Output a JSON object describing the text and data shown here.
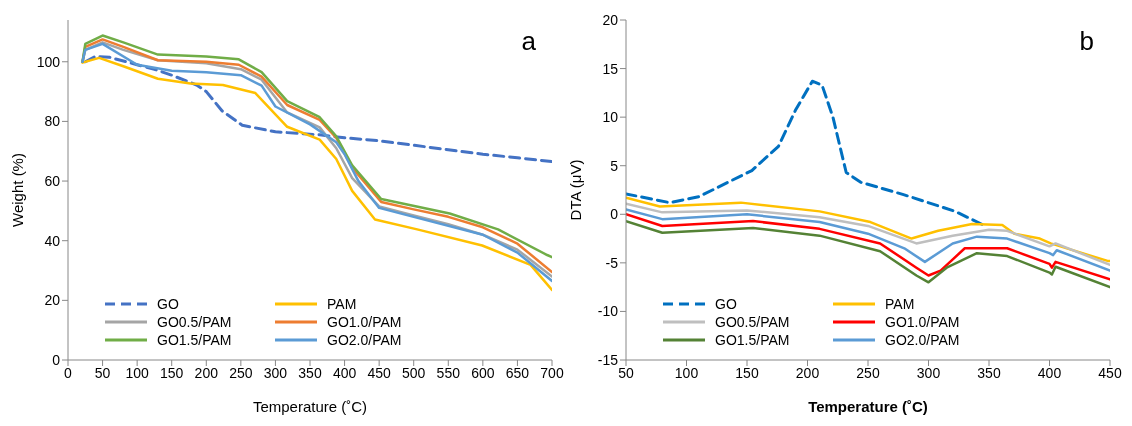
{
  "chart_data": [
    {
      "type": "line",
      "xlabel": "Temperature (˚C)",
      "ylabel": "Weight (%)",
      "xlim": [
        0,
        700
      ],
      "xticks": [
        0,
        50,
        100,
        150,
        200,
        250,
        300,
        350,
        400,
        450,
        500,
        550,
        600,
        650,
        700
      ],
      "ylim": [
        0,
        114
      ],
      "yticks": [
        0,
        20,
        40,
        60,
        80,
        100
      ],
      "grid": false,
      "legend": "bottom",
      "marker": "none",
      "annotations": [
        "a"
      ],
      "series": [
        {
          "name": "GO",
          "color": "#4472c4",
          "line_style": "dashed",
          "x": [
            25,
            40,
            60,
            100,
            125,
            150,
            186,
            200,
            223,
            252,
            300,
            364,
            400,
            450,
            500,
            550,
            600,
            650,
            700
          ],
          "values": [
            100,
            101.8,
            101.5,
            99,
            97.5,
            95.5,
            92.2,
            90,
            83.5,
            78.7,
            76.5,
            75.5,
            74.5,
            73.5,
            72,
            70.5,
            69,
            67.8,
            66.5
          ]
        },
        {
          "name": "PAM",
          "color": "#ffc000",
          "x": [
            21,
            45,
            80,
            130,
            177,
            224,
            271,
            317,
            364,
            388,
            411,
            444,
            505,
            599,
            669,
            700
          ],
          "values": [
            99.7,
            101.3,
            98.5,
            94.3,
            92.7,
            92.2,
            89.5,
            78.2,
            73.9,
            67.4,
            56.7,
            47.1,
            43.8,
            38.4,
            31.9,
            23.5
          ]
        },
        {
          "name": "GO0.5/PAM",
          "color": "#a5a5a5",
          "x": [
            21,
            25,
            50,
            80,
            130,
            200,
            250,
            280,
            317,
            364,
            388,
            411,
            450,
            500,
            550,
            600,
            650,
            700
          ],
          "values": [
            100,
            104,
            106.5,
            104,
            100.5,
            99.5,
            97.5,
            94,
            83,
            78,
            71,
            61,
            51.5,
            48.5,
            45.5,
            42,
            37,
            28
          ]
        },
        {
          "name": "GO1.0/PAM",
          "color": "#ed7d31",
          "x": [
            21,
            25,
            50,
            80,
            130,
            200,
            247,
            280,
            317,
            364,
            388,
            411,
            453,
            500,
            550,
            600,
            650,
            700
          ],
          "values": [
            100,
            105,
            107.5,
            105,
            100.5,
            100,
            99,
            95,
            85.5,
            80.5,
            74.5,
            64.5,
            53,
            50.5,
            48,
            44.5,
            39,
            29.5
          ]
        },
        {
          "name": "GO1.5/PAM",
          "color": "#70ad47",
          "x": [
            21,
            25,
            50,
            80,
            130,
            200,
            247,
            280,
            317,
            364,
            388,
            411,
            453,
            552,
            622,
            693,
            700
          ],
          "values": [
            100,
            106,
            108.8,
            106.5,
            102.4,
            101.8,
            100.8,
            96.5,
            86.8,
            81.4,
            75,
            65.3,
            54,
            49.1,
            43.8,
            35.2,
            34.5
          ]
        },
        {
          "name": "GO2.0/PAM",
          "color": "#5b9bd5",
          "x": [
            21,
            25,
            50,
            100,
            150,
            200,
            250,
            280,
            300,
            350,
            388,
            400,
            420,
            450,
            500,
            600,
            650,
            700
          ],
          "values": [
            100,
            104,
            106,
            99,
            97,
            96.5,
            95.5,
            92,
            85,
            79,
            73,
            69,
            60,
            51,
            48,
            42,
            36,
            26.5
          ]
        }
      ]
    },
    {
      "type": "line",
      "xlabel": "Temperature (˚C)",
      "ylabel": "DTA (μV)",
      "xlim": [
        50,
        450
      ],
      "xticks": [
        50,
        100,
        150,
        200,
        250,
        300,
        350,
        400,
        450
      ],
      "ylim": [
        -15,
        20
      ],
      "yticks": [
        -15,
        -10,
        -5,
        0,
        5,
        10,
        15,
        20
      ],
      "grid": false,
      "legend": "bottom",
      "marker": "none",
      "annotations": [
        "b"
      ],
      "series": [
        {
          "name": "GO",
          "color": "#0070c0",
          "line_style": "dashed",
          "x": [
            50,
            86,
            110,
            154,
            176,
            190,
            204,
            212,
            221,
            232,
            244,
            280,
            322,
            347
          ],
          "values": [
            2.1,
            1.2,
            1.8,
            4.5,
            7,
            10.7,
            13.7,
            13.3,
            10,
            4.3,
            3.3,
            2,
            0.3,
            -1.2
          ]
        },
        {
          "name": "PAM",
          "color": "#ffc000",
          "x": [
            50,
            78,
            145,
            210,
            252,
            286,
            308,
            336,
            361,
            371,
            392,
            401,
            448,
            450
          ],
          "values": [
            1.7,
            0.8,
            1.2,
            0.3,
            -0.8,
            -2.5,
            -1.7,
            -1,
            -1.1,
            -2,
            -2.5,
            -3,
            -4.8,
            -4.8
          ]
        },
        {
          "name": "GO0.5/PAM",
          "color": "#bfbfbf",
          "x": [
            50,
            80,
            150,
            210,
            250,
            290,
            320,
            350,
            365,
            400,
            405,
            450
          ],
          "values": [
            1.1,
            0.2,
            0.4,
            -0.3,
            -1.2,
            -3,
            -2.2,
            -1.6,
            -1.7,
            -3.3,
            -3,
            -5.2
          ]
        },
        {
          "name": "GO1.0/PAM",
          "color": "#ff0000",
          "x": [
            50,
            80,
            155,
            210,
            260,
            290,
            300,
            310,
            330,
            365,
            400,
            402,
            405,
            450
          ],
          "values": [
            0,
            -1.2,
            -0.7,
            -1.5,
            -3,
            -5.5,
            -6.3,
            -5.8,
            -3.5,
            -3.5,
            -5.1,
            -5.5,
            -4.9,
            -6.7
          ]
        },
        {
          "name": "GO1.5/PAM",
          "color": "#548235",
          "x": [
            50,
            80,
            155,
            210,
            260,
            290,
            300,
            315,
            340,
            365,
            400,
            402,
            405,
            450
          ],
          "values": [
            -0.7,
            -1.9,
            -1.4,
            -2.2,
            -3.8,
            -6.3,
            -7,
            -5.5,
            -4,
            -4.3,
            -6,
            -6.2,
            -5.4,
            -7.5
          ]
        },
        {
          "name": "GO2.0/PAM",
          "color": "#5b9bd5",
          "x": [
            50,
            80,
            150,
            210,
            250,
            280,
            297,
            320,
            340,
            365,
            400,
            403,
            406,
            450
          ],
          "values": [
            0.5,
            -0.5,
            0,
            -0.8,
            -2,
            -3.5,
            -4.9,
            -3,
            -2.3,
            -2.5,
            -4,
            -4.2,
            -3.7,
            -5.8
          ]
        }
      ]
    }
  ]
}
